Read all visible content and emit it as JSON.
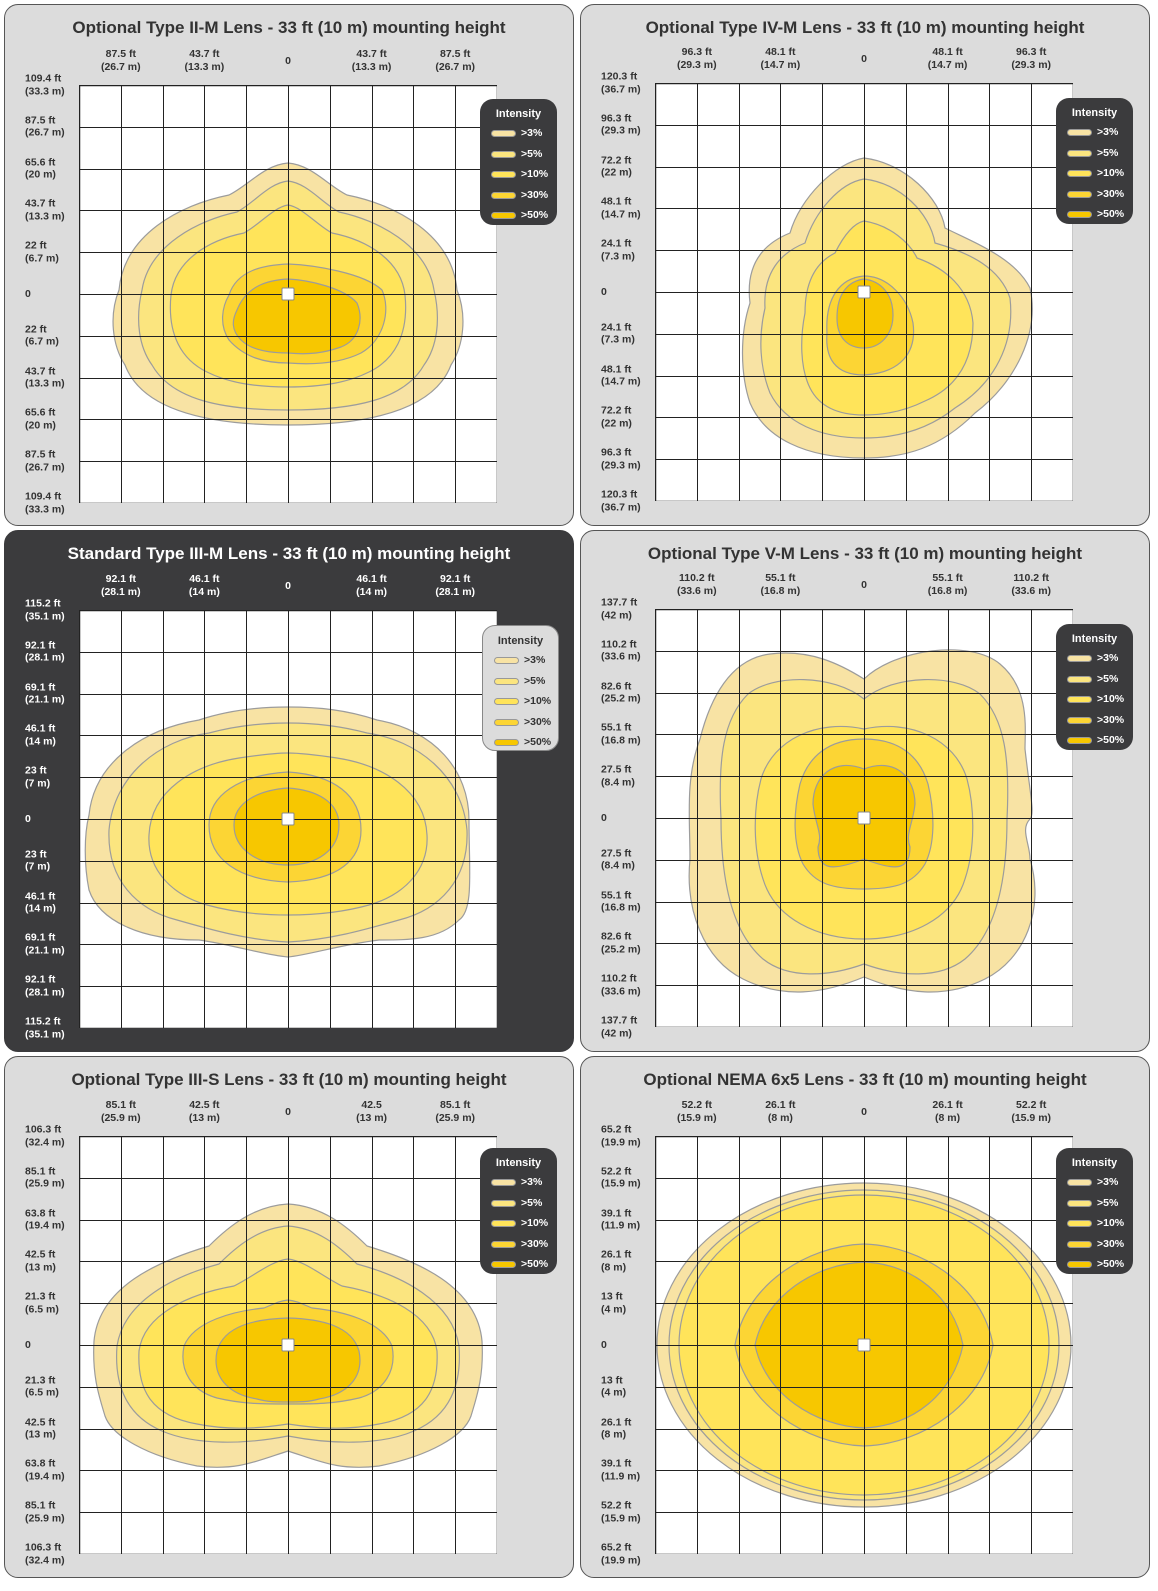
{
  "legend": {
    "title": "Intensity",
    "items": [
      {
        "label": ">3%",
        "color": "#f8e3a4"
      },
      {
        "label": ">5%",
        "color": "#fbe57f"
      },
      {
        "label": ">10%",
        "color": "#ffe45a"
      },
      {
        "label": ">30%",
        "color": "#fcd534"
      },
      {
        "label": ">50%",
        "color": "#f7c700"
      }
    ]
  },
  "panels": [
    {
      "title": "Optional Type II-M Lens - 33 ft (10 m) mounting height",
      "theme": "light",
      "x_ticks": [
        {
          "ft": "87.5 ft",
          "m": "(26.7 m)"
        },
        {
          "ft": "43.7 ft",
          "m": "(13.3 m)"
        },
        {
          "ft": "0",
          "m": ""
        },
        {
          "ft": "43.7 ft",
          "m": "(13.3 m)"
        },
        {
          "ft": "87.5 ft",
          "m": "(26.7 m)"
        }
      ],
      "y_ticks": [
        {
          "ft": "109.4 ft",
          "m": "(33.3 m)"
        },
        {
          "ft": "87.5 ft",
          "m": "(26.7 m)"
        },
        {
          "ft": "65.6 ft",
          "m": "(20 m)"
        },
        {
          "ft": "43.7 ft",
          "m": "(13.3 m)"
        },
        {
          "ft": "22 ft",
          "m": "(6.7 m)"
        },
        {
          "ft": "0",
          "m": ""
        },
        {
          "ft": "22 ft",
          "m": "(6.7 m)"
        },
        {
          "ft": "43.7 ft",
          "m": "(13.3 m)"
        },
        {
          "ft": "65.6 ft",
          "m": "(20 m)"
        },
        {
          "ft": "87.5 ft",
          "m": "(26.7 m)"
        },
        {
          "ft": "109.4 ft",
          "m": "(33.3 m)"
        }
      ]
    },
    {
      "title": "Optional Type IV-M Lens - 33 ft (10 m) mounting height",
      "theme": "light",
      "x_ticks": [
        {
          "ft": "96.3 ft",
          "m": "(29.3 m)"
        },
        {
          "ft": "48.1 ft",
          "m": "(14.7 m)"
        },
        {
          "ft": "0",
          "m": ""
        },
        {
          "ft": "48.1 ft",
          "m": "(14.7 m)"
        },
        {
          "ft": "96.3 ft",
          "m": "(29.3 m)"
        }
      ],
      "y_ticks": [
        {
          "ft": "120.3 ft",
          "m": "(36.7 m)"
        },
        {
          "ft": "96.3 ft",
          "m": "(29.3 m)"
        },
        {
          "ft": "72.2 ft",
          "m": "(22 m)"
        },
        {
          "ft": "48.1 ft",
          "m": "(14.7 m)"
        },
        {
          "ft": "24.1 ft",
          "m": "(7.3 m)"
        },
        {
          "ft": "0",
          "m": ""
        },
        {
          "ft": "24.1 ft",
          "m": "(7.3 m)"
        },
        {
          "ft": "48.1 ft",
          "m": "(14.7 m)"
        },
        {
          "ft": "72.2 ft",
          "m": "(22 m)"
        },
        {
          "ft": "96.3 ft",
          "m": "(29.3 m)"
        },
        {
          "ft": "120.3 ft",
          "m": "(36.7 m)"
        }
      ]
    },
    {
      "title": "Standard Type III-M Lens - 33 ft (10 m) mounting height",
      "theme": "dark",
      "x_ticks": [
        {
          "ft": "92.1 ft",
          "m": "(28.1 m)"
        },
        {
          "ft": "46.1 ft",
          "m": "(14 m)"
        },
        {
          "ft": "0",
          "m": ""
        },
        {
          "ft": "46.1 ft",
          "m": "(14 m)"
        },
        {
          "ft": "92.1 ft",
          "m": "(28.1 m)"
        }
      ],
      "y_ticks": [
        {
          "ft": "115.2 ft",
          "m": "(35.1 m)"
        },
        {
          "ft": "92.1 ft",
          "m": "(28.1 m)"
        },
        {
          "ft": "69.1 ft",
          "m": "(21.1 m)"
        },
        {
          "ft": "46.1 ft",
          "m": "(14 m)"
        },
        {
          "ft": "23 ft",
          "m": "(7 m)"
        },
        {
          "ft": "0",
          "m": ""
        },
        {
          "ft": "23 ft",
          "m": "(7 m)"
        },
        {
          "ft": "46.1 ft",
          "m": "(14 m)"
        },
        {
          "ft": "69.1 ft",
          "m": "(21.1 m)"
        },
        {
          "ft": "92.1 ft",
          "m": "(28.1 m)"
        },
        {
          "ft": "115.2 ft",
          "m": "(35.1 m)"
        }
      ]
    },
    {
      "title": "Optional Type V-M Lens - 33 ft (10 m) mounting height",
      "theme": "light",
      "x_ticks": [
        {
          "ft": "110.2 ft",
          "m": "(33.6 m)"
        },
        {
          "ft": "55.1 ft",
          "m": "(16.8 m)"
        },
        {
          "ft": "0",
          "m": ""
        },
        {
          "ft": "55.1 ft",
          "m": "(16.8 m)"
        },
        {
          "ft": "110.2 ft",
          "m": "(33.6 m)"
        }
      ],
      "y_ticks": [
        {
          "ft": "137.7 ft",
          "m": "(42 m)"
        },
        {
          "ft": "110.2 ft",
          "m": "(33.6 m)"
        },
        {
          "ft": "82.6 ft",
          "m": "(25.2 m)"
        },
        {
          "ft": "55.1 ft",
          "m": "(16.8 m)"
        },
        {
          "ft": "27.5 ft",
          "m": "(8.4 m)"
        },
        {
          "ft": "0",
          "m": ""
        },
        {
          "ft": "27.5 ft",
          "m": "(8.4 m)"
        },
        {
          "ft": "55.1 ft",
          "m": "(16.8 m)"
        },
        {
          "ft": "82.6 ft",
          "m": "(25.2 m)"
        },
        {
          "ft": "110.2 ft",
          "m": "(33.6 m)"
        },
        {
          "ft": "137.7 ft",
          "m": "(42 m)"
        }
      ]
    },
    {
      "title": "Optional Type III-S Lens - 33 ft (10 m) mounting height",
      "theme": "light",
      "x_ticks": [
        {
          "ft": "85.1 ft",
          "m": "(25.9 m)"
        },
        {
          "ft": "42.5 ft",
          "m": "(13 m)"
        },
        {
          "ft": "0",
          "m": ""
        },
        {
          "ft": "42.5",
          "m": "(13 m)"
        },
        {
          "ft": "85.1 ft",
          "m": "(25.9 m)"
        }
      ],
      "y_ticks": [
        {
          "ft": "106.3 ft",
          "m": "(32.4 m)"
        },
        {
          "ft": "85.1 ft",
          "m": "(25.9 m)"
        },
        {
          "ft": "63.8 ft",
          "m": "(19.4 m)"
        },
        {
          "ft": "42.5 ft",
          "m": "(13 m)"
        },
        {
          "ft": "21.3 ft",
          "m": "(6.5 m)"
        },
        {
          "ft": "0",
          "m": ""
        },
        {
          "ft": "21.3 ft",
          "m": "(6.5 m)"
        },
        {
          "ft": "42.5 ft",
          "m": "(13 m)"
        },
        {
          "ft": "63.8 ft",
          "m": "(19.4 m)"
        },
        {
          "ft": "85.1 ft",
          "m": "(25.9 m)"
        },
        {
          "ft": "106.3 ft",
          "m": "(32.4 m)"
        }
      ]
    },
    {
      "title": "Optional NEMA 6x5 Lens - 33 ft (10 m) mounting height",
      "theme": "light",
      "x_ticks": [
        {
          "ft": "52.2 ft",
          "m": "(15.9 m)"
        },
        {
          "ft": "26.1 ft",
          "m": "(8 m)"
        },
        {
          "ft": "0",
          "m": ""
        },
        {
          "ft": "26.1 ft",
          "m": "(8 m)"
        },
        {
          "ft": "52.2 ft",
          "m": "(15.9 m)"
        }
      ],
      "y_ticks": [
        {
          "ft": "65.2 ft",
          "m": "(19.9 m)"
        },
        {
          "ft": "52.2 ft",
          "m": "(15.9 m)"
        },
        {
          "ft": "39.1 ft",
          "m": "(11.9 m)"
        },
        {
          "ft": "26.1 ft",
          "m": "(8 m)"
        },
        {
          "ft": "13 ft",
          "m": "(4 m)"
        },
        {
          "ft": "0",
          "m": ""
        },
        {
          "ft": "13 ft",
          "m": "(4 m)"
        },
        {
          "ft": "26.1 ft",
          "m": "(8 m)"
        },
        {
          "ft": "39.1 ft",
          "m": "(11.9 m)"
        },
        {
          "ft": "52.2 ft",
          "m": "(15.9 m)"
        },
        {
          "ft": "65.2 ft",
          "m": "(19.9 m)"
        }
      ]
    }
  ]
}
